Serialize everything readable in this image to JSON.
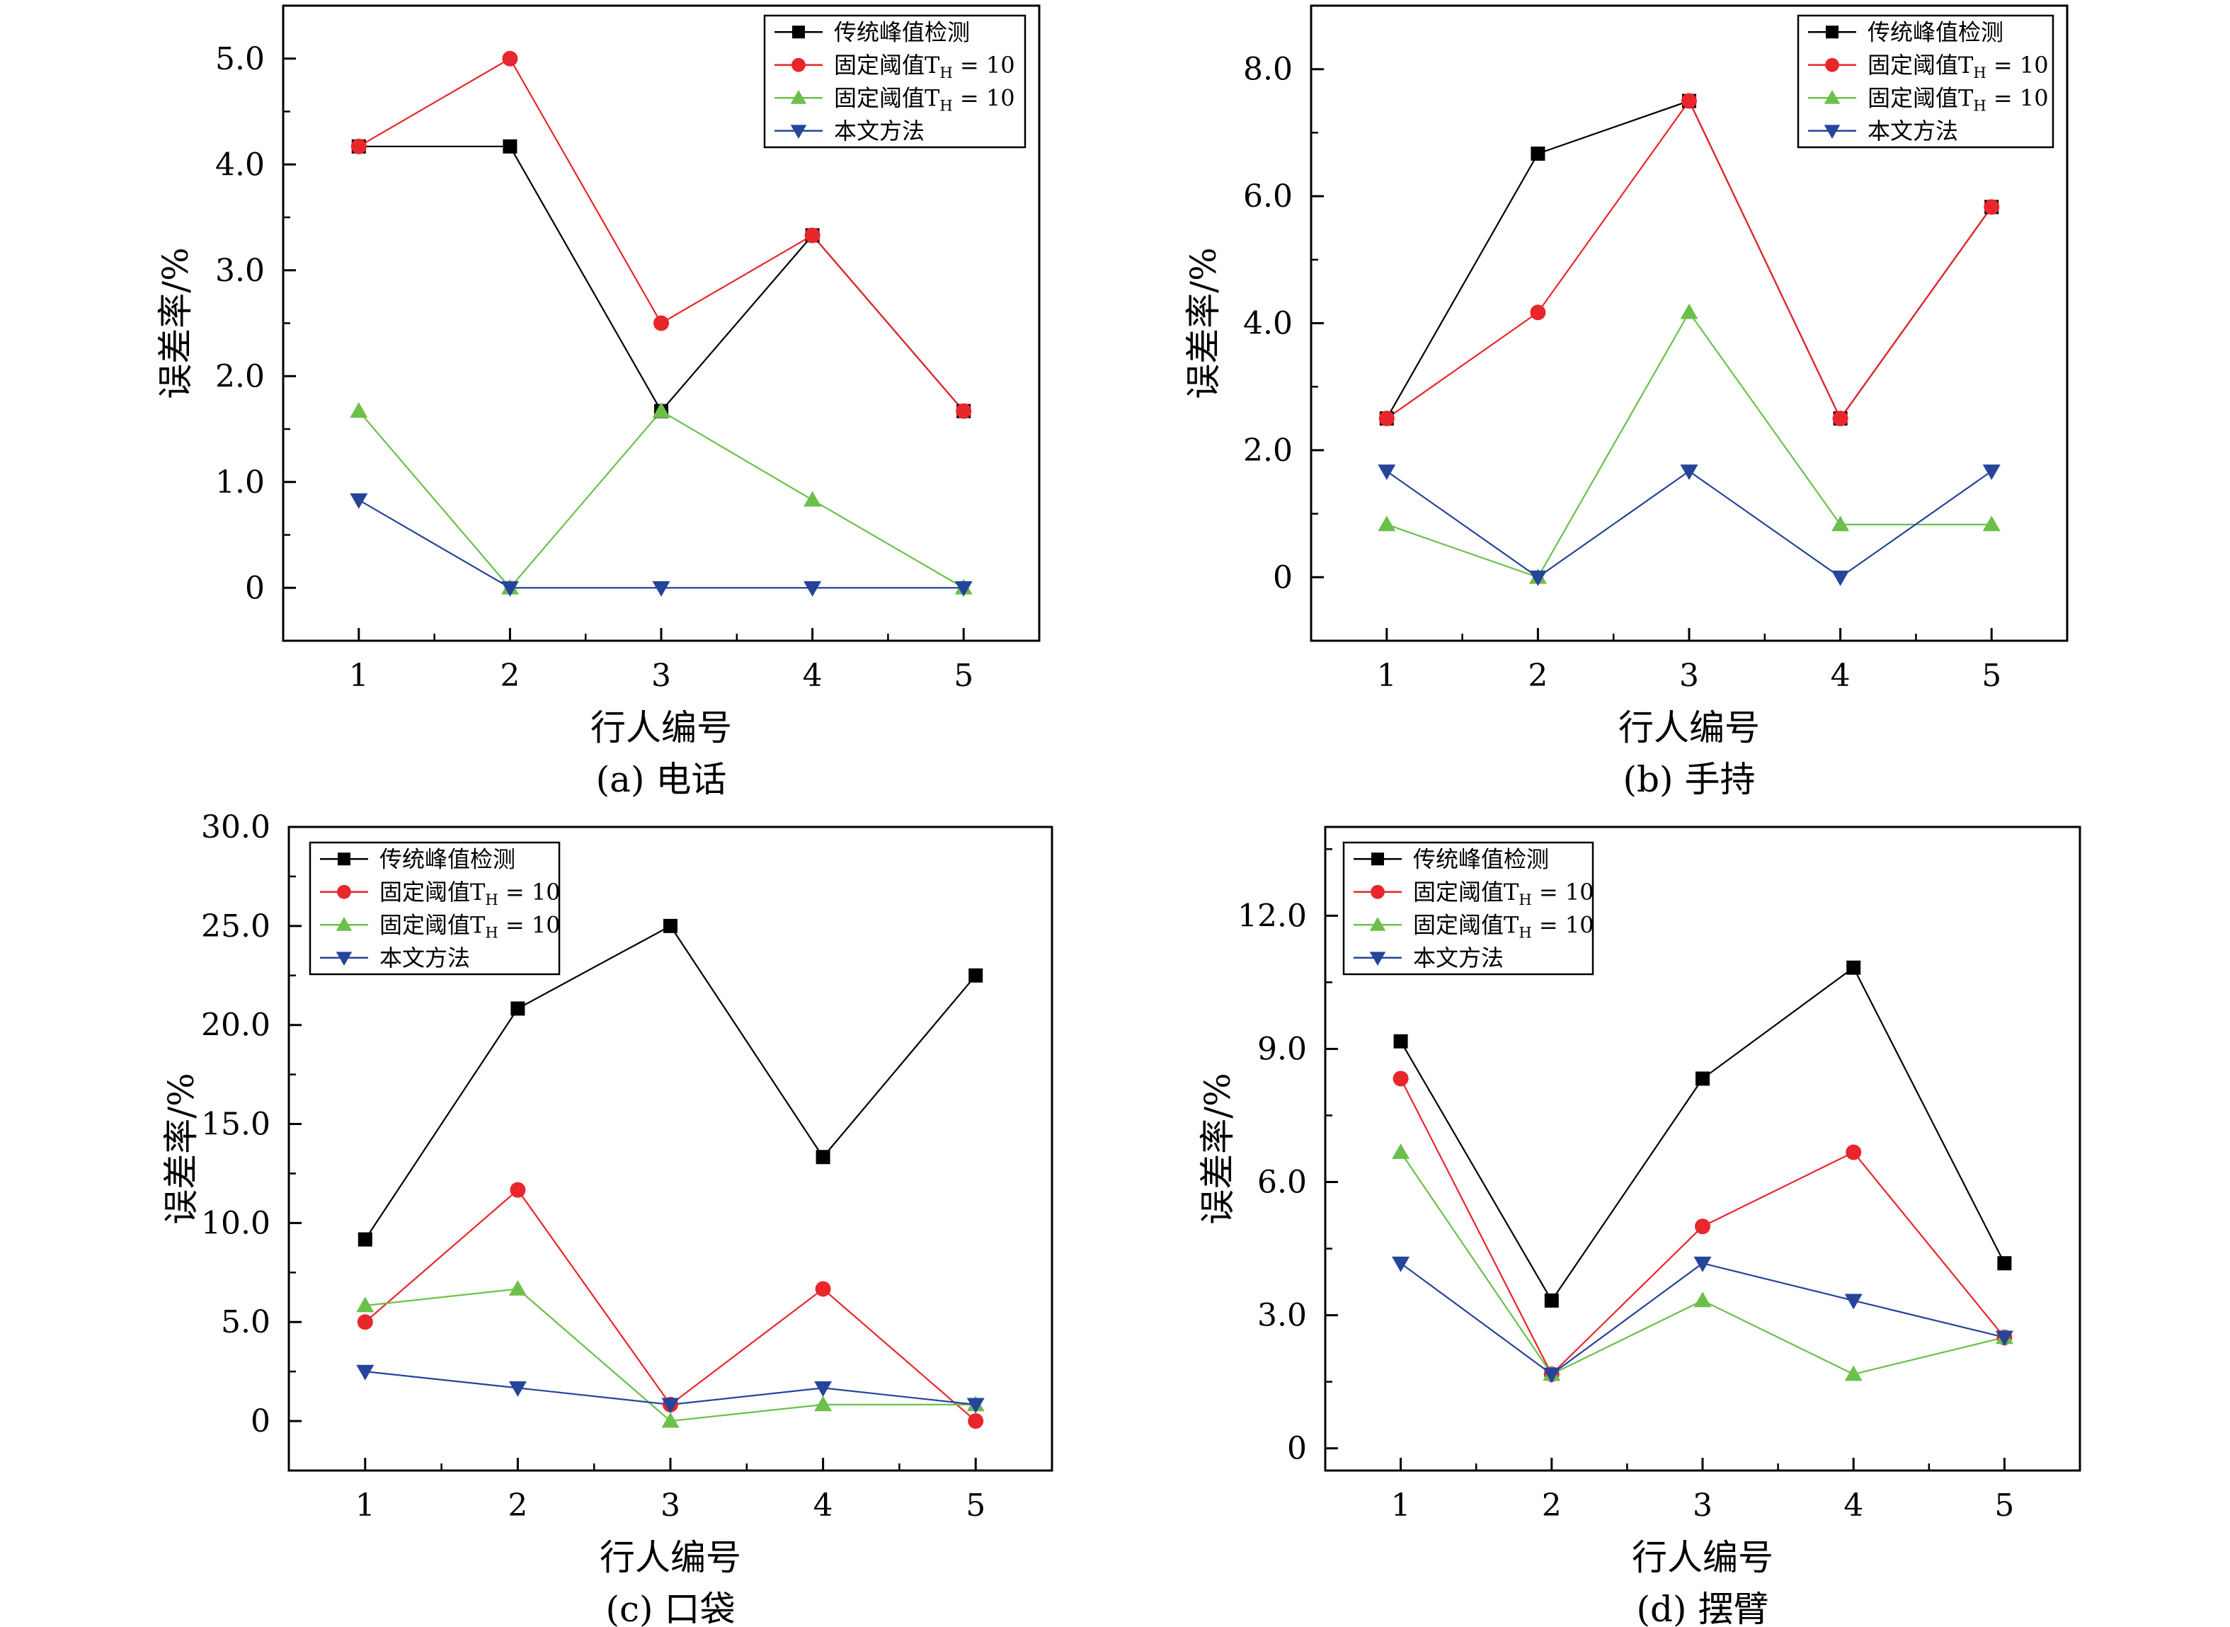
{
  "page_colors": {
    "background": "#ffffff",
    "axis": "#000000",
    "series": {
      "traditional": "#000000",
      "fixed_red": "#e8262c",
      "fixed_green": "#6cc04a",
      "proposed": "#25449a"
    }
  },
  "chart_data": [
    {
      "id": "a",
      "type": "line",
      "caption": "(a) 电话",
      "xlabel": "行人编号",
      "ylabel": "误差率/%",
      "x": [
        1,
        2,
        3,
        4,
        5
      ],
      "xlim": [
        0.5,
        5.5
      ],
      "ylim": [
        -0.5,
        5.5
      ],
      "yticks": [
        0,
        1,
        2,
        3,
        4,
        5
      ],
      "ytick_labels": [
        "0",
        "1.0",
        "2.0",
        "3.0",
        "4.0",
        "5.0"
      ],
      "legend": "top-right",
      "series": [
        {
          "name": "传统峰值检测",
          "marker": "square",
          "color": "#000000",
          "values": [
            4.17,
            4.17,
            1.67,
            3.33,
            1.67
          ]
        },
        {
          "name": "固定阈值T",
          "subscript": "H",
          "suffix": " = 10",
          "marker": "circle",
          "color": "#e8262c",
          "values": [
            4.17,
            5.0,
            2.5,
            3.33,
            1.67
          ]
        },
        {
          "name": "固定阈值T",
          "subscript": "H",
          "suffix": " = 10",
          "marker": "triangle-up",
          "color": "#6cc04a",
          "values": [
            1.67,
            0,
            1.67,
            0.83,
            0
          ]
        },
        {
          "name": "本文方法",
          "marker": "triangle-down",
          "color": "#25449a",
          "values": [
            0.83,
            0,
            0,
            0,
            0
          ]
        }
      ]
    },
    {
      "id": "b",
      "type": "line",
      "caption": "(b) 手持",
      "xlabel": "行人编号",
      "ylabel": "误差率/%",
      "x": [
        1,
        2,
        3,
        4,
        5
      ],
      "xlim": [
        0.5,
        5.5
      ],
      "ylim": [
        -1,
        9
      ],
      "yticks": [
        0,
        2,
        4,
        6,
        8
      ],
      "ytick_labels": [
        "0",
        "2.0",
        "4.0",
        "6.0",
        "8.0"
      ],
      "legend": "top-right",
      "series": [
        {
          "name": "传统峰值检测",
          "marker": "square",
          "color": "#000000",
          "values": [
            2.5,
            6.67,
            7.5,
            2.5,
            5.83
          ]
        },
        {
          "name": "固定阈值T",
          "subscript": "H",
          "suffix": " = 10",
          "marker": "circle",
          "color": "#e8262c",
          "values": [
            2.5,
            4.17,
            7.5,
            2.5,
            5.83
          ]
        },
        {
          "name": "固定阈值T",
          "subscript": "H",
          "suffix": " = 10",
          "marker": "triangle-up",
          "color": "#6cc04a",
          "values": [
            0.83,
            0,
            4.17,
            0.83,
            0.83
          ]
        },
        {
          "name": "本文方法",
          "marker": "triangle-down",
          "color": "#25449a",
          "values": [
            1.67,
            0,
            1.67,
            0,
            1.67
          ]
        }
      ]
    },
    {
      "id": "c",
      "type": "line",
      "caption": "(c) 口袋",
      "xlabel": "行人编号",
      "ylabel": "误差率/%",
      "x": [
        1,
        2,
        3,
        4,
        5
      ],
      "xlim": [
        0.5,
        5.5
      ],
      "ylim": [
        -2.5,
        30
      ],
      "yticks": [
        0,
        5,
        10,
        15,
        20,
        25,
        30
      ],
      "ytick_labels": [
        "0",
        "5.0",
        "10.0",
        "15.0",
        "20.0",
        "25.0",
        "30.0"
      ],
      "legend": "top-left",
      "series": [
        {
          "name": "传统峰值检测",
          "marker": "square",
          "color": "#000000",
          "values": [
            9.17,
            20.83,
            25.0,
            13.33,
            22.5
          ]
        },
        {
          "name": "固定阈值T",
          "subscript": "H",
          "suffix": " = 10",
          "marker": "circle",
          "color": "#e8262c",
          "values": [
            5.0,
            11.67,
            0.83,
            6.67,
            0
          ]
        },
        {
          "name": "固定阈值T",
          "subscript": "H",
          "suffix": " = 10",
          "marker": "triangle-up",
          "color": "#6cc04a",
          "values": [
            5.83,
            6.67,
            0,
            0.83,
            0.83
          ]
        },
        {
          "name": "本文方法",
          "marker": "triangle-down",
          "color": "#25449a",
          "values": [
            2.5,
            1.67,
            0.83,
            1.67,
            0.83
          ]
        }
      ]
    },
    {
      "id": "d",
      "type": "line",
      "caption": "(d) 摆臂",
      "xlabel": "行人编号",
      "ylabel": "误差率/%",
      "x": [
        1,
        2,
        3,
        4,
        5
      ],
      "xlim": [
        0.5,
        5.5
      ],
      "ylim": [
        -0.5,
        14
      ],
      "yticks": [
        0,
        3,
        6,
        9,
        12
      ],
      "ytick_labels": [
        "0",
        "3.0",
        "6.0",
        "9.0",
        "12.0"
      ],
      "legend": "top-left",
      "series": [
        {
          "name": "传统峰值检测",
          "marker": "square",
          "color": "#000000",
          "values": [
            9.17,
            3.33,
            8.33,
            10.83,
            4.17
          ]
        },
        {
          "name": "固定阈值T",
          "subscript": "H",
          "suffix": " = 10",
          "marker": "circle",
          "color": "#e8262c",
          "values": [
            8.33,
            1.67,
            5.0,
            6.67,
            2.5
          ]
        },
        {
          "name": "固定阈值T",
          "subscript": "H",
          "suffix": " = 10",
          "marker": "triangle-up",
          "color": "#6cc04a",
          "values": [
            6.67,
            1.67,
            3.33,
            1.67,
            2.5
          ]
        },
        {
          "name": "本文方法",
          "marker": "triangle-down",
          "color": "#25449a",
          "values": [
            4.17,
            1.67,
            4.17,
            3.33,
            2.5
          ]
        }
      ]
    }
  ]
}
